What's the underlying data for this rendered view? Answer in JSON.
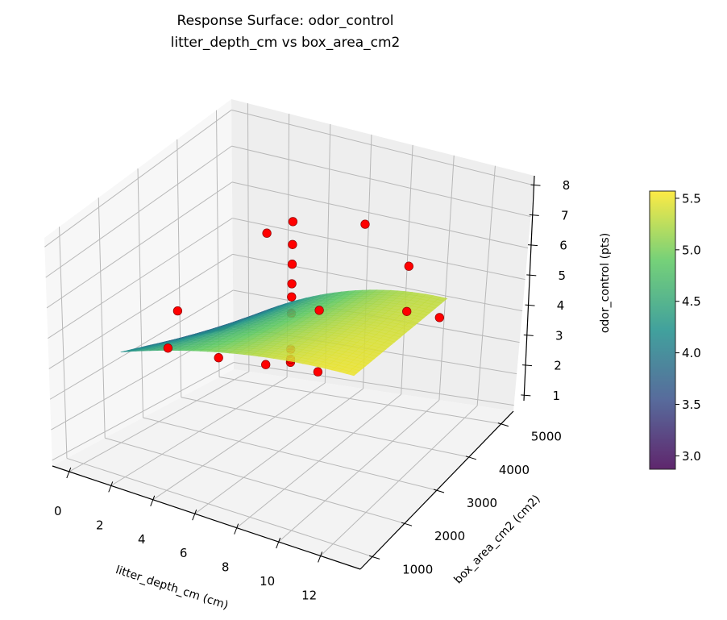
{
  "chart_data": {
    "type": "surface3d+scatter",
    "title": "Response Surface: odor_control",
    "subtitle": "litter_depth_cm vs box_area_cm2",
    "xlabel": "litter_depth_cm (cm)",
    "ylabel": "box_area_cm2 (cm2)",
    "zlabel": "odor_control (pts)",
    "xlim": [
      -0.8,
      13.9
    ],
    "ylim": [
      620,
      5380
    ],
    "zlim": [
      0.81,
      8.3
    ],
    "xticks": [
      0,
      2,
      4,
      6,
      8,
      10,
      12
    ],
    "yticks": [
      1000,
      2000,
      3000,
      4000,
      5000
    ],
    "zticks": [
      1,
      2,
      3,
      4,
      5,
      6,
      7,
      8
    ],
    "grid": true,
    "colormap": "viridis",
    "colorbar": {
      "range": [
        2.87,
        5.57
      ],
      "ticks": [
        "3.0",
        "3.5",
        "4.0",
        "4.5",
        "5.0",
        "5.5"
      ]
    },
    "surface": {
      "x_range": [
        1,
        12
      ],
      "y_range": [
        1500,
        4200
      ],
      "corner_values": {
        "x1_y1500": 4.2,
        "x12_y1500": 5.5,
        "x1_y4200": 2.85,
        "x12_y4200": 5.3
      },
      "shape": "concave in x"
    },
    "points_color": "#ff0000",
    "points": [
      {
        "x": 6.5,
        "y": 3000,
        "z": 3.6
      },
      {
        "x": 6.5,
        "y": 3000,
        "z": 3.7
      },
      {
        "x": 6.5,
        "y": 3000,
        "z": 4.0
      },
      {
        "x": 6.5,
        "y": 3000,
        "z": 5.1
      },
      {
        "x": 6.5,
        "y": 3000,
        "z": 5.6
      },
      {
        "x": 6.5,
        "y": 3000,
        "z": 6.0
      },
      {
        "x": 6.5,
        "y": 3000,
        "z": 6.6
      },
      {
        "x": 6.5,
        "y": 3000,
        "z": 7.2
      },
      {
        "x": 6.5,
        "y": 3000,
        "z": 7.9
      },
      {
        "x": 6.5,
        "y": 5000,
        "z": 6.05
      },
      {
        "x": 3.5,
        "y": 4000,
        "z": 6.2
      },
      {
        "x": 3.5,
        "y": 4000,
        "z": 2.3
      },
      {
        "x": 9.5,
        "y": 2000,
        "z": 4.7
      },
      {
        "x": 9.5,
        "y": 2000,
        "z": 6.6
      },
      {
        "x": 1.0,
        "y": 3000,
        "z": 4.3
      },
      {
        "x": 0.5,
        "y": 3000,
        "z": 3.1
      },
      {
        "x": 6.5,
        "y": 1000,
        "z": 5.5
      },
      {
        "x": 12.0,
        "y": 3000,
        "z": 6.05
      },
      {
        "x": 12.0,
        "y": 3000,
        "z": 7.45
      },
      {
        "x": 12.0,
        "y": 4000,
        "z": 4.9
      }
    ]
  }
}
